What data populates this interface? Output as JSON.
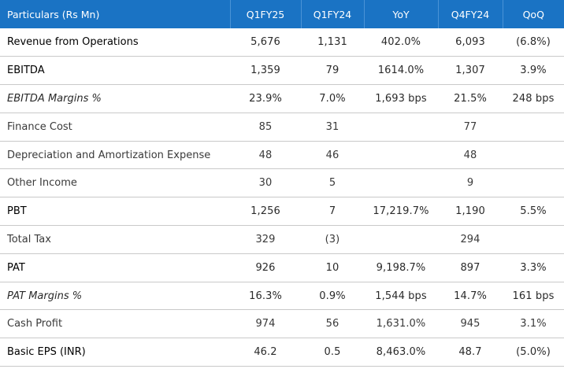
{
  "table": {
    "headers": [
      "Particulars (Rs Mn)",
      "Q1FY25",
      "Q1FY24",
      "YoY",
      "Q4FY24",
      "QoQ"
    ],
    "header_color": "#1a73c4",
    "rows": [
      {
        "label": "Revenue from Operations",
        "style": "bold",
        "values": [
          "5,676",
          "1,131",
          "402.0%",
          "6,093",
          "(6.8%)"
        ]
      },
      {
        "label": "EBITDA",
        "style": "bold",
        "values": [
          "1,359",
          "79",
          "1614.0%",
          "1,307",
          "3.9%"
        ]
      },
      {
        "label": "EBITDA Margins %",
        "style": "italic",
        "values": [
          "23.9%",
          "7.0%",
          "1,693 bps",
          "21.5%",
          "248 bps"
        ]
      },
      {
        "label": "Finance Cost",
        "style": "light",
        "values": [
          "85",
          "31",
          "",
          "77",
          ""
        ]
      },
      {
        "label": "Depreciation and Amortization Expense",
        "style": "light",
        "values": [
          "48",
          "46",
          "",
          "48",
          ""
        ]
      },
      {
        "label": "Other Income",
        "style": "light",
        "values": [
          "30",
          "5",
          "",
          "9",
          ""
        ]
      },
      {
        "label": "PBT",
        "style": "bold",
        "values": [
          "1,256",
          "7",
          "17,219.7%",
          "1,190",
          "5.5%"
        ]
      },
      {
        "label": "Total Tax",
        "style": "light",
        "values": [
          "329",
          "(3)",
          "",
          "294",
          ""
        ]
      },
      {
        "label": "PAT",
        "style": "bold",
        "values": [
          "926",
          "10",
          "9,198.7%",
          "897",
          "3.3%"
        ]
      },
      {
        "label": "PAT Margins %",
        "style": "italic",
        "values": [
          "16.3%",
          "0.9%",
          "1,544 bps",
          "14.7%",
          "161 bps"
        ]
      },
      {
        "label": "Cash Profit",
        "style": "light",
        "values": [
          "974",
          "56",
          "1,631.0%",
          "945",
          "3.1%"
        ]
      },
      {
        "label": "Basic EPS (INR)",
        "style": "bold",
        "values": [
          "46.2",
          "0.5",
          "8,463.0%",
          "48.7",
          "(5.0%)"
        ]
      }
    ]
  }
}
